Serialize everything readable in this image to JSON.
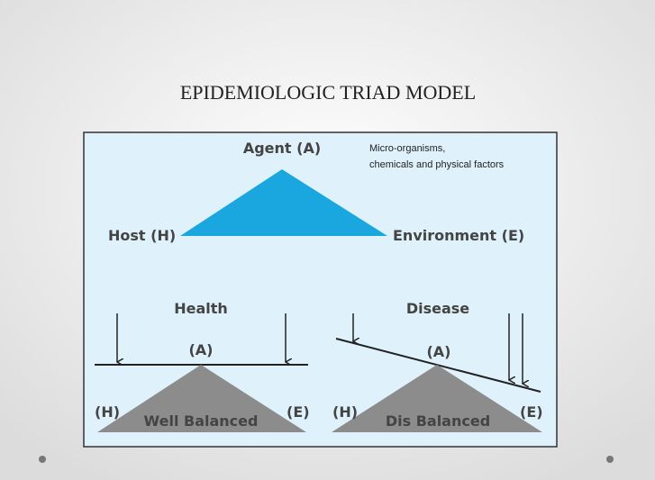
{
  "title": "EPIDEMIOLOGIC TRIAD MODEL",
  "diagram": {
    "agent": "Agent (A)",
    "agent_note": [
      "Micro-organisms,",
      "chemicals and physical factors"
    ],
    "host": "Host (H)",
    "environment": "Environment (E)",
    "health": {
      "label": "Health",
      "agent": "(A)",
      "host": "(H)",
      "environment": "(E)",
      "status": "Well Balanced"
    },
    "disease": {
      "label": "Disease",
      "agent": "(A)",
      "host": "(H)",
      "environment": "(E)",
      "status": "Dis Balanced"
    }
  }
}
